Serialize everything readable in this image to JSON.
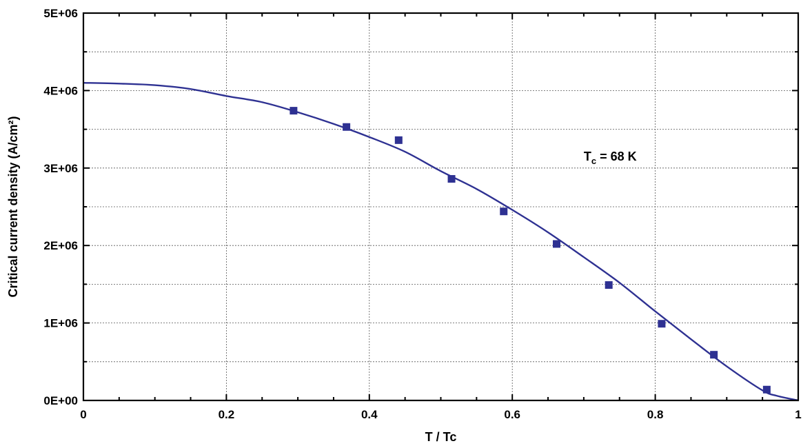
{
  "chart_data": {
    "type": "scatter",
    "title": "",
    "xlabel": "T / Tc",
    "ylabel": "Critical current density (A/cm²)",
    "xlim": [
      0,
      1
    ],
    "ylim": [
      0,
      5000000
    ],
    "x_ticks": [
      "0",
      "0.2",
      "0.4",
      "0.6",
      "0.8",
      "1"
    ],
    "x_tick_values": [
      0,
      0.2,
      0.4,
      0.6,
      0.8,
      1
    ],
    "y_ticks": [
      "0E+00",
      "1E+06",
      "2E+06",
      "3E+06",
      "4E+06",
      "5E+06"
    ],
    "y_tick_values": [
      0,
      1000000,
      2000000,
      3000000,
      4000000,
      5000000
    ],
    "grid": true,
    "series": [
      {
        "marker": "square",
        "color": "#2e3192",
        "x": [
          0.294,
          0.368,
          0.441,
          0.515,
          0.588,
          0.662,
          0.735,
          0.809,
          0.882,
          0.956
        ],
        "y": [
          3740000,
          3530000,
          3360000,
          2860000,
          2440000,
          2020000,
          1490000,
          990000,
          590000,
          140000
        ]
      }
    ],
    "fit": {
      "color": "#2e3192",
      "x": [
        0,
        0.05,
        0.1,
        0.15,
        0.2,
        0.25,
        0.3,
        0.35,
        0.4,
        0.45,
        0.5,
        0.55,
        0.6,
        0.65,
        0.7,
        0.75,
        0.8,
        0.85,
        0.9,
        0.95,
        0.97,
        1.0
      ],
      "y": [
        4100000,
        4090000,
        4070000,
        4020000,
        3930000,
        3850000,
        3720000,
        3570000,
        3400000,
        3210000,
        2960000,
        2730000,
        2460000,
        2170000,
        1850000,
        1520000,
        1150000,
        790000,
        440000,
        130000,
        60000,
        0
      ]
    },
    "annotation": {
      "text_main": "T",
      "text_sub": "c",
      "text_rest": " = 68 K",
      "x": 0.7,
      "y": 3150000
    }
  }
}
